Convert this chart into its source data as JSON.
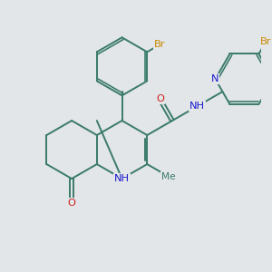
{
  "background_color": "#e2e6e8",
  "bond_color": "#3a7a6a",
  "bond_width": 1.4,
  "atom_colors": {
    "N": "#1a1acc",
    "O": "#cc1a1a",
    "Br": "#cc8800",
    "C": "#3a7a6a"
  },
  "figsize": [
    3.0,
    3.0
  ],
  "dpi": 100,
  "xlim": [
    -2.8,
    4.8
  ],
  "ylim": [
    -3.2,
    4.0
  ]
}
